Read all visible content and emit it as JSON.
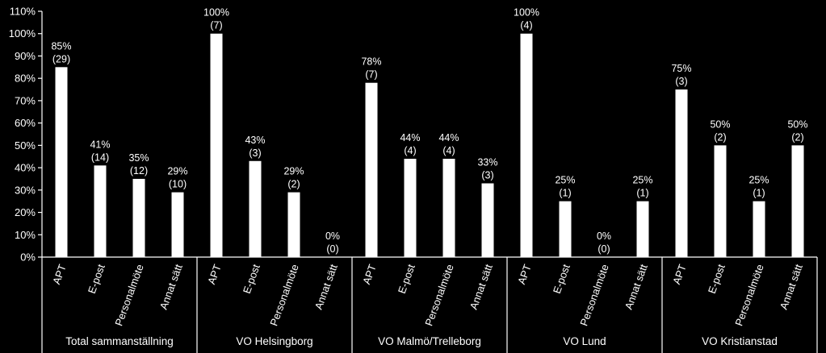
{
  "chart_data": {
    "type": "bar",
    "background": "#000000",
    "bar_color": "#ffffff",
    "text_color": "#ffffff",
    "ylim": [
      0,
      110
    ],
    "yticks": [
      "0%",
      "10%",
      "20%",
      "30%",
      "40%",
      "50%",
      "60%",
      "70%",
      "80%",
      "90%",
      "100%",
      "110%"
    ],
    "grid": false,
    "legend": "none",
    "groups": [
      {
        "name": "Total sammanställning",
        "categories": [
          "APT",
          "E-post",
          "Personalmöte",
          "Annat sätt"
        ],
        "values": [
          85,
          41,
          35,
          29
        ],
        "labels": [
          "85%",
          "41%",
          "35%",
          "29%"
        ],
        "counts": [
          "(29)",
          "(14)",
          "(12)",
          "(10)"
        ]
      },
      {
        "name": "VO Helsingborg",
        "categories": [
          "APT",
          "E-post",
          "Personalmöte",
          "Annat sätt"
        ],
        "values": [
          100,
          43,
          29,
          0
        ],
        "labels": [
          "100%",
          "43%",
          "29%",
          "0%"
        ],
        "counts": [
          "(7)",
          "(3)",
          "(2)",
          "(0)"
        ]
      },
      {
        "name": "VO Malmö/Trelleborg",
        "categories": [
          "APT",
          "E-post",
          "Personalmöte",
          "Annat sätt"
        ],
        "values": [
          78,
          44,
          44,
          33
        ],
        "labels": [
          "78%",
          "44%",
          "44%",
          "33%"
        ],
        "counts": [
          "(7)",
          "(4)",
          "(4)",
          "(3)"
        ]
      },
      {
        "name": "VO Lund",
        "categories": [
          "APT",
          "E-post",
          "Personalmöte",
          "Annat sätt"
        ],
        "values": [
          100,
          25,
          0,
          25
        ],
        "labels": [
          "100%",
          "25%",
          "0%",
          "25%"
        ],
        "counts": [
          "(4)",
          "(1)",
          "(0)",
          "(1)"
        ]
      },
      {
        "name": "VO Kristianstad",
        "categories": [
          "APT",
          "E-post",
          "Personalmöte",
          "Annat sätt"
        ],
        "values": [
          75,
          50,
          25,
          50
        ],
        "labels": [
          "75%",
          "50%",
          "25%",
          "50%"
        ],
        "counts": [
          "(3)",
          "(2)",
          "(1)",
          "(2)"
        ]
      }
    ]
  }
}
